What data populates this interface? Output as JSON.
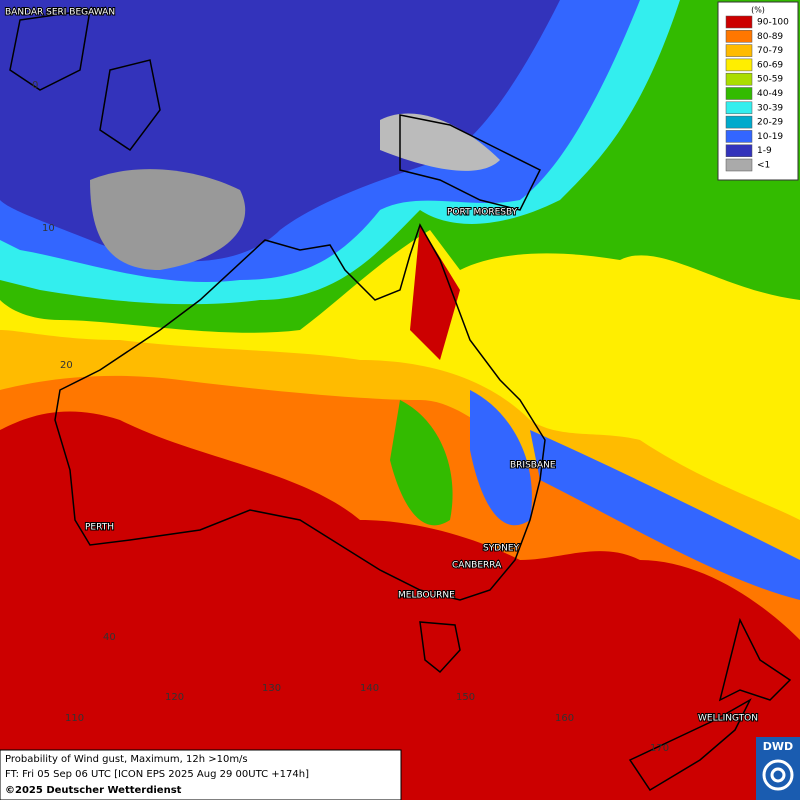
{
  "map": {
    "legend": {
      "title": "(%)",
      "items": [
        {
          "label": "90-100",
          "color": "#cc0000"
        },
        {
          "label": "80-89",
          "color": "#ff7700"
        },
        {
          "label": "70-79",
          "color": "#ffbb00"
        },
        {
          "label": "60-69",
          "color": "#ffee00"
        },
        {
          "label": "50-59",
          "color": "#aadd00"
        },
        {
          "label": "40-49",
          "color": "#33bb00"
        },
        {
          "label": "30-39",
          "color": "#33eeee"
        },
        {
          "label": "20-29",
          "color": "#00aacc"
        },
        {
          "label": "10-19",
          "color": "#3366ff"
        },
        {
          "label": "1-9",
          "color": "#3333bb"
        },
        {
          "label": "<1",
          "color": "#aaaaaa"
        }
      ]
    },
    "cities": [
      "BANDAR SERI BEGAWAN",
      "PORT MORESBY",
      "BRISBANE",
      "PERTH",
      "SYDNEY",
      "CANBERRA",
      "MELBOURNE",
      "WELLINGTON"
    ],
    "grid_labels": [
      "0",
      "10",
      "20",
      "40",
      "110",
      "120",
      "130",
      "140",
      "150",
      "160",
      "170"
    ],
    "footer": {
      "line1": "Probability of Wind gust, Maximum, 12h >10m/s",
      "line2": "FT: Fri 05 Sep 06 UTC [ICON EPS 2025 Aug 29 00UTC +174h]",
      "copyright": "©2025 Deutscher Wetterdienst"
    },
    "logo": "DWD"
  }
}
